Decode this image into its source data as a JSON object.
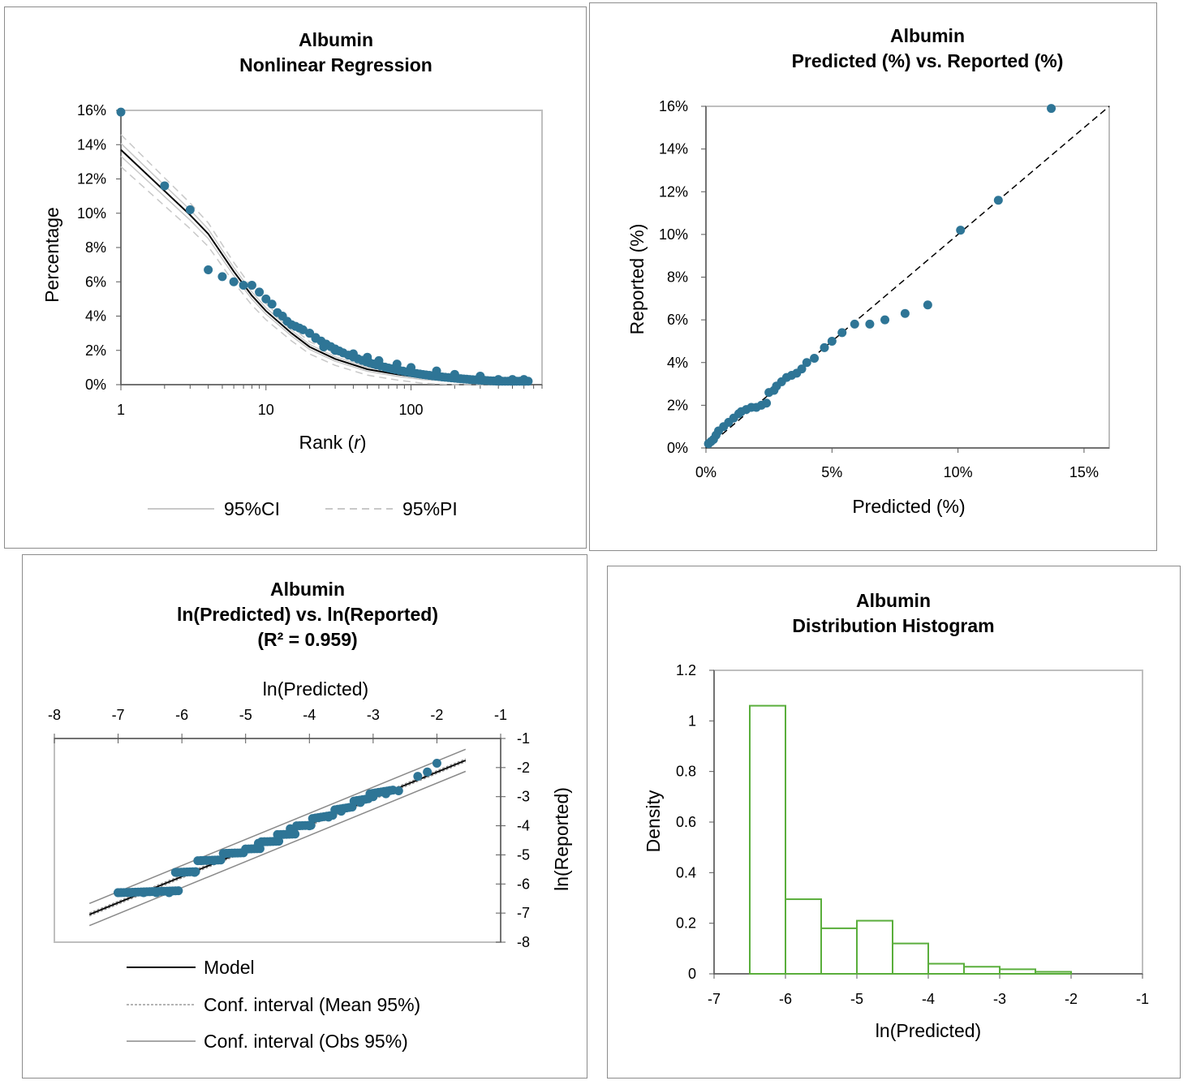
{
  "colors": {
    "point": "#2e7596",
    "model": "#000000",
    "ci": "#c8c8c8",
    "pi": "#c8c8c8",
    "obs": "#8a8a8a",
    "frame": "#bfbfbf",
    "hist": "#5aae3c"
  },
  "chart_data": [
    {
      "type": "scatter",
      "title": "Albumin",
      "subtitle": "Nonlinear Regression",
      "xlabel": "Rank (r)",
      "ylabel": "Percentage",
      "x_scale": "log",
      "xlim": [
        1,
        800
      ],
      "ylim": [
        0,
        0.16
      ],
      "x_ticks": [
        "1",
        "10",
        "100"
      ],
      "y_ticks": [
        "0%",
        "2%",
        "4%",
        "6%",
        "8%",
        "10%",
        "12%",
        "14%",
        "16%"
      ],
      "legend": {
        "ci_label": "95%CI",
        "pi_label": "95%PI",
        "position": "bottom"
      },
      "grid": false,
      "points_labeled": [
        [
          1,
          0.159
        ],
        [
          2,
          0.116
        ],
        [
          3,
          0.102
        ],
        [
          4,
          0.067
        ],
        [
          5,
          0.063
        ],
        [
          6,
          0.06
        ],
        [
          7,
          0.058
        ],
        [
          8,
          0.058
        ],
        [
          9,
          0.054
        ],
        [
          10,
          0.05
        ],
        [
          11,
          0.047
        ],
        [
          12,
          0.042
        ],
        [
          13,
          0.04
        ],
        [
          14,
          0.037
        ],
        [
          15,
          0.035
        ],
        [
          16,
          0.034
        ],
        [
          17,
          0.033
        ],
        [
          18,
          0.032
        ],
        [
          20,
          0.03
        ],
        [
          22,
          0.027
        ],
        [
          25,
          0.022
        ],
        [
          30,
          0.02
        ],
        [
          40,
          0.018
        ],
        [
          50,
          0.016
        ],
        [
          60,
          0.014
        ],
        [
          80,
          0.012
        ],
        [
          100,
          0.01
        ],
        [
          150,
          0.008
        ],
        [
          200,
          0.006
        ],
        [
          300,
          0.005
        ],
        [
          400,
          0.003
        ],
        [
          500,
          0.003
        ],
        [
          600,
          0.003
        ]
      ],
      "model_curve": [
        [
          1,
          0.137
        ],
        [
          2,
          0.113
        ],
        [
          3,
          0.099
        ],
        [
          4,
          0.088
        ],
        [
          6,
          0.066
        ],
        [
          8,
          0.052
        ],
        [
          10,
          0.043
        ],
        [
          15,
          0.03
        ],
        [
          20,
          0.022
        ],
        [
          30,
          0.015
        ],
        [
          50,
          0.009
        ],
        [
          80,
          0.006
        ],
        [
          120,
          0.004
        ],
        [
          200,
          0.003
        ],
        [
          400,
          0.002
        ],
        [
          650,
          0.002
        ]
      ]
    },
    {
      "type": "scatter",
      "title": "Albumin",
      "subtitle": "Predicted (%) vs. Reported (%)",
      "xlabel": "Predicted (%)",
      "ylabel": "Reported (%)",
      "xlim": [
        0,
        0.16
      ],
      "ylim": [
        0,
        0.16
      ],
      "x_ticks": [
        "0%",
        "5%",
        "10%",
        "15%"
      ],
      "y_ticks": [
        "0%",
        "2%",
        "4%",
        "6%",
        "8%",
        "10%",
        "12%",
        "14%",
        "16%"
      ],
      "grid": false,
      "identity_line": true,
      "points": [
        [
          0.137,
          0.159
        ],
        [
          0.116,
          0.116
        ],
        [
          0.101,
          0.102
        ],
        [
          0.088,
          0.067
        ],
        [
          0.079,
          0.063
        ],
        [
          0.071,
          0.06
        ],
        [
          0.065,
          0.058
        ],
        [
          0.059,
          0.058
        ],
        [
          0.054,
          0.054
        ],
        [
          0.05,
          0.05
        ],
        [
          0.047,
          0.047
        ],
        [
          0.043,
          0.042
        ],
        [
          0.04,
          0.04
        ],
        [
          0.038,
          0.037
        ],
        [
          0.036,
          0.035
        ],
        [
          0.034,
          0.034
        ],
        [
          0.032,
          0.033
        ],
        [
          0.03,
          0.031
        ],
        [
          0.028,
          0.029
        ],
        [
          0.027,
          0.027
        ],
        [
          0.025,
          0.026
        ],
        [
          0.024,
          0.021
        ],
        [
          0.022,
          0.02
        ],
        [
          0.02,
          0.019
        ],
        [
          0.018,
          0.019
        ],
        [
          0.016,
          0.018
        ],
        [
          0.014,
          0.017
        ],
        [
          0.013,
          0.016
        ],
        [
          0.011,
          0.014
        ],
        [
          0.009,
          0.012
        ],
        [
          0.007,
          0.01
        ],
        [
          0.005,
          0.008
        ],
        [
          0.004,
          0.006
        ],
        [
          0.003,
          0.004
        ],
        [
          0.002,
          0.003
        ],
        [
          0.001,
          0.002
        ]
      ]
    },
    {
      "type": "scatter",
      "title": "Albumin",
      "subtitle": "ln(Predicted) vs. ln(Reported)",
      "annotation": "(R² = 0.959)",
      "xlabel": "ln(Predicted)",
      "ylabel": "ln(Reported)",
      "xlim": [
        -8,
        -1
      ],
      "ylim": [
        -8,
        -1
      ],
      "x_ticks": [
        "-8",
        "-7",
        "-6",
        "-5",
        "-4",
        "-3",
        "-2",
        "-1"
      ],
      "y_ticks": [
        "-1",
        "-2",
        "-3",
        "-4",
        "-5",
        "-6",
        "-7",
        "-8"
      ],
      "legend": {
        "model_label": "Model",
        "mean_label": "Conf. interval (Mean 95%)",
        "obs_label": "Conf. interval (Obs 95%)",
        "position": "bottom"
      },
      "grid": false,
      "model_line": [
        [
          -7.45,
          -7.05
        ],
        [
          -1.55,
          -1.75
        ]
      ],
      "points": [
        [
          -7.0,
          -6.3
        ],
        [
          -6.8,
          -6.3
        ],
        [
          -6.6,
          -6.3
        ],
        [
          -6.4,
          -6.3
        ],
        [
          -6.2,
          -6.3
        ],
        [
          -6.0,
          -5.6
        ],
        [
          -5.8,
          -5.6
        ],
        [
          -5.7,
          -5.2
        ],
        [
          -5.5,
          -5.2
        ],
        [
          -5.3,
          -4.95
        ],
        [
          -5.0,
          -4.8
        ],
        [
          -4.8,
          -4.6
        ],
        [
          -4.5,
          -4.3
        ],
        [
          -4.3,
          -4.1
        ],
        [
          -4.0,
          -4.0
        ],
        [
          -3.7,
          -3.7
        ],
        [
          -3.5,
          -3.5
        ],
        [
          -3.2,
          -3.2
        ],
        [
          -3.0,
          -3.0
        ],
        [
          -2.8,
          -2.9
        ],
        [
          -2.6,
          -2.8
        ],
        [
          -2.3,
          -2.3
        ],
        [
          -2.15,
          -2.15
        ],
        [
          -2.0,
          -1.85
        ]
      ]
    },
    {
      "type": "bar",
      "title": "Albumin",
      "subtitle": "Distribution Histogram",
      "xlabel": "ln(Predicted)",
      "ylabel": "Density",
      "xlim": [
        -7,
        -1
      ],
      "ylim": [
        0,
        1.2
      ],
      "x_ticks": [
        "-7",
        "-6",
        "-5",
        "-4",
        "-3",
        "-2",
        "-1"
      ],
      "y_ticks": [
        "0",
        "0.2",
        "0.4",
        "0.6",
        "0.8",
        "1",
        "1.2"
      ],
      "grid": false,
      "bins": [
        {
          "x0": -7.0,
          "x1": -6.5,
          "density": 0.0
        },
        {
          "x0": -6.5,
          "x1": -6.0,
          "density": 1.06
        },
        {
          "x0": -6.0,
          "x1": -5.5,
          "density": 0.295
        },
        {
          "x0": -5.5,
          "x1": -5.0,
          "density": 0.18
        },
        {
          "x0": -5.0,
          "x1": -4.5,
          "density": 0.21
        },
        {
          "x0": -4.5,
          "x1": -4.0,
          "density": 0.12
        },
        {
          "x0": -4.0,
          "x1": -3.5,
          "density": 0.04
        },
        {
          "x0": -3.5,
          "x1": -3.0,
          "density": 0.028
        },
        {
          "x0": -3.0,
          "x1": -2.5,
          "density": 0.018
        },
        {
          "x0": -2.5,
          "x1": -2.0,
          "density": 0.008
        },
        {
          "x0": -2.0,
          "x1": -1.5,
          "density": 0.0
        }
      ]
    }
  ]
}
